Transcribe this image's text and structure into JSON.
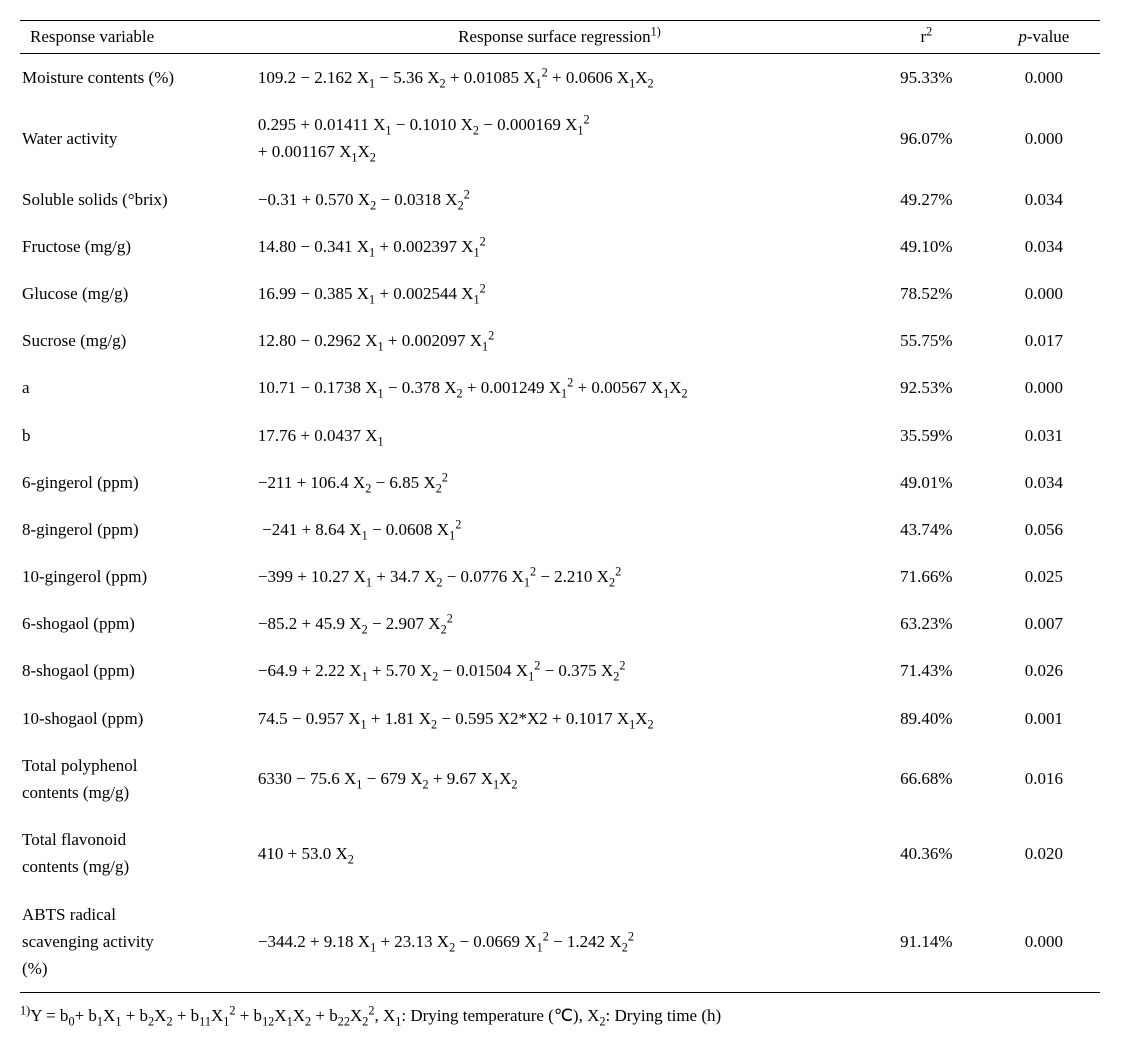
{
  "header": {
    "col1": "Response variable",
    "col2_html": "Response surface regression<sup>1)</sup>",
    "col3_html": "r<sup>2</sup>",
    "col4_html": "<span class='it'>p</span>-value"
  },
  "rows": [
    {
      "var": "Moisture contents (%)",
      "reg_html": "109.2 − 2.162 X<sub>1</sub> − 5.36 X<sub>2</sub> + 0.01085 X<sub>1</sub><sup>2</sup> + 0.0606 X<sub>1</sub>X<sub>2</sub>",
      "r2": "95.33%",
      "p": "0.000"
    },
    {
      "var": "Water activity",
      "reg_html": "0.295 + 0.01411 X<sub>1</sub> − 0.1010 X<sub>2</sub> − 0.000169 X<sub>1</sub><sup>2</sup><br>+ 0.001167 X<sub>1</sub>X<sub>2</sub>",
      "r2": "96.07%",
      "p": "0.000"
    },
    {
      "var": "Soluble solids (°brix)",
      "reg_html": "−0.31 + 0.570 X<sub>2</sub> − 0.0318 X<sub>2</sub><sup>2</sup>",
      "r2": "49.27%",
      "p": "0.034"
    },
    {
      "var": "Fructose (mg/g)",
      "reg_html": "14.80 − 0.341 X<sub>1</sub> + 0.002397 X<sub>1</sub><sup>2</sup>",
      "r2": "49.10%",
      "p": "0.034"
    },
    {
      "var": "Glucose (mg/g)",
      "reg_html": "16.99 − 0.385 X<sub>1</sub> + 0.002544 X<sub>1</sub><sup>2</sup>",
      "r2": "78.52%",
      "p": "0.000"
    },
    {
      "var": "Sucrose (mg/g)",
      "reg_html": "12.80 − 0.2962 X<sub>1</sub> + 0.002097 X<sub>1</sub><sup>2</sup>",
      "r2": "55.75%",
      "p": "0.017"
    },
    {
      "var": "a",
      "reg_html": "10.71 − 0.1738 X<sub>1</sub> − 0.378 X<sub>2</sub> + 0.001249 X<sub>1</sub><sup>2</sup> + 0.00567 X<sub>1</sub>X<sub>2</sub>",
      "r2": "92.53%",
      "p": "0.000"
    },
    {
      "var": "b",
      "reg_html": "17.76 + 0.0437 X<sub>1</sub>",
      "r2": "35.59%",
      "p": "0.031"
    },
    {
      "var": "6-gingerol (ppm)",
      "reg_html": "−211 + 106.4 X<sub>2</sub> − 6.85 X<sub>2</sub><sup>2</sup>",
      "r2": "49.01%",
      "p": "0.034"
    },
    {
      "var": "8-gingerol (ppm)",
      "reg_html": "&nbsp;−241 + 8.64 X<sub>1</sub> − 0.0608 X<sub>1</sub><sup>2</sup>",
      "r2": "43.74%",
      "p": "0.056"
    },
    {
      "var": "10-gingerol (ppm)",
      "reg_html": "−399 + 10.27 X<sub>1</sub> + 34.7 X<sub>2</sub> − 0.0776 X<sub>1</sub><sup>2</sup> − 2.210 X<sub>2</sub><sup>2</sup>",
      "r2": "71.66%",
      "p": "0.025"
    },
    {
      "var": "6-shogaol (ppm)",
      "reg_html": "−85.2 + 45.9 X<sub>2</sub> − 2.907 X<sub>2</sub><sup>2</sup>",
      "r2": "63.23%",
      "p": "0.007"
    },
    {
      "var": "8-shogaol (ppm)",
      "reg_html": "−64.9 + 2.22 X<sub>1</sub> + 5.70 X<sub>2</sub> − 0.01504 X<sub>1</sub><sup>2</sup> − 0.375 X<sub>2</sub><sup>2</sup>",
      "r2": "71.43%",
      "p": "0.026"
    },
    {
      "var": "10-shogaol (ppm)",
      "reg_html": "74.5 − 0.957 X<sub>1</sub> + 1.81 X<sub>2</sub> − 0.595 X2*X2 + 0.1017 X<sub>1</sub>X<sub>2</sub>",
      "r2": "89.40%",
      "p": "0.001"
    },
    {
      "var_html": "Total polyphenol<br>contents (mg/g)",
      "reg_html": "6330 − 75.6 X<sub>1</sub> − 679 X<sub>2</sub> + 9.67 X<sub>1</sub>X<sub>2</sub>",
      "r2": "66.68%",
      "p": "0.016"
    },
    {
      "var_html": "Total flavonoid<br>contents (mg/g)",
      "reg_html": "410 + 53.0 X<sub>2</sub>",
      "r2": "40.36%",
      "p": "0.020"
    },
    {
      "var_html": "ABTS radical<br>scavenging activity<br>(%)",
      "reg_html": "−344.2 + 9.18 X<sub>1</sub> + 23.13 X<sub>2</sub> − 0.0669 X<sub>1</sub><sup>2</sup> − 1.242 X<sub>2</sub><sup>2</sup>",
      "r2": "91.14%",
      "p": "0.000"
    }
  ],
  "footnote_html": "<sup>1)</sup>Y = b<sub>0</sub>+ b<sub>1</sub>X<sub>1</sub> + b<sub>2</sub>X<sub>2</sub> + b<sub>11</sub>X<sub>1</sub><sup>2</sup> + b<sub>12</sub>X<sub>1</sub>X<sub>2</sub> + b<sub>22</sub>X<sub>2</sub><sup>2</sup>, X<sub>1</sub>: Drying temperature (℃), X<sub>2</sub>: Drying time (h)"
}
